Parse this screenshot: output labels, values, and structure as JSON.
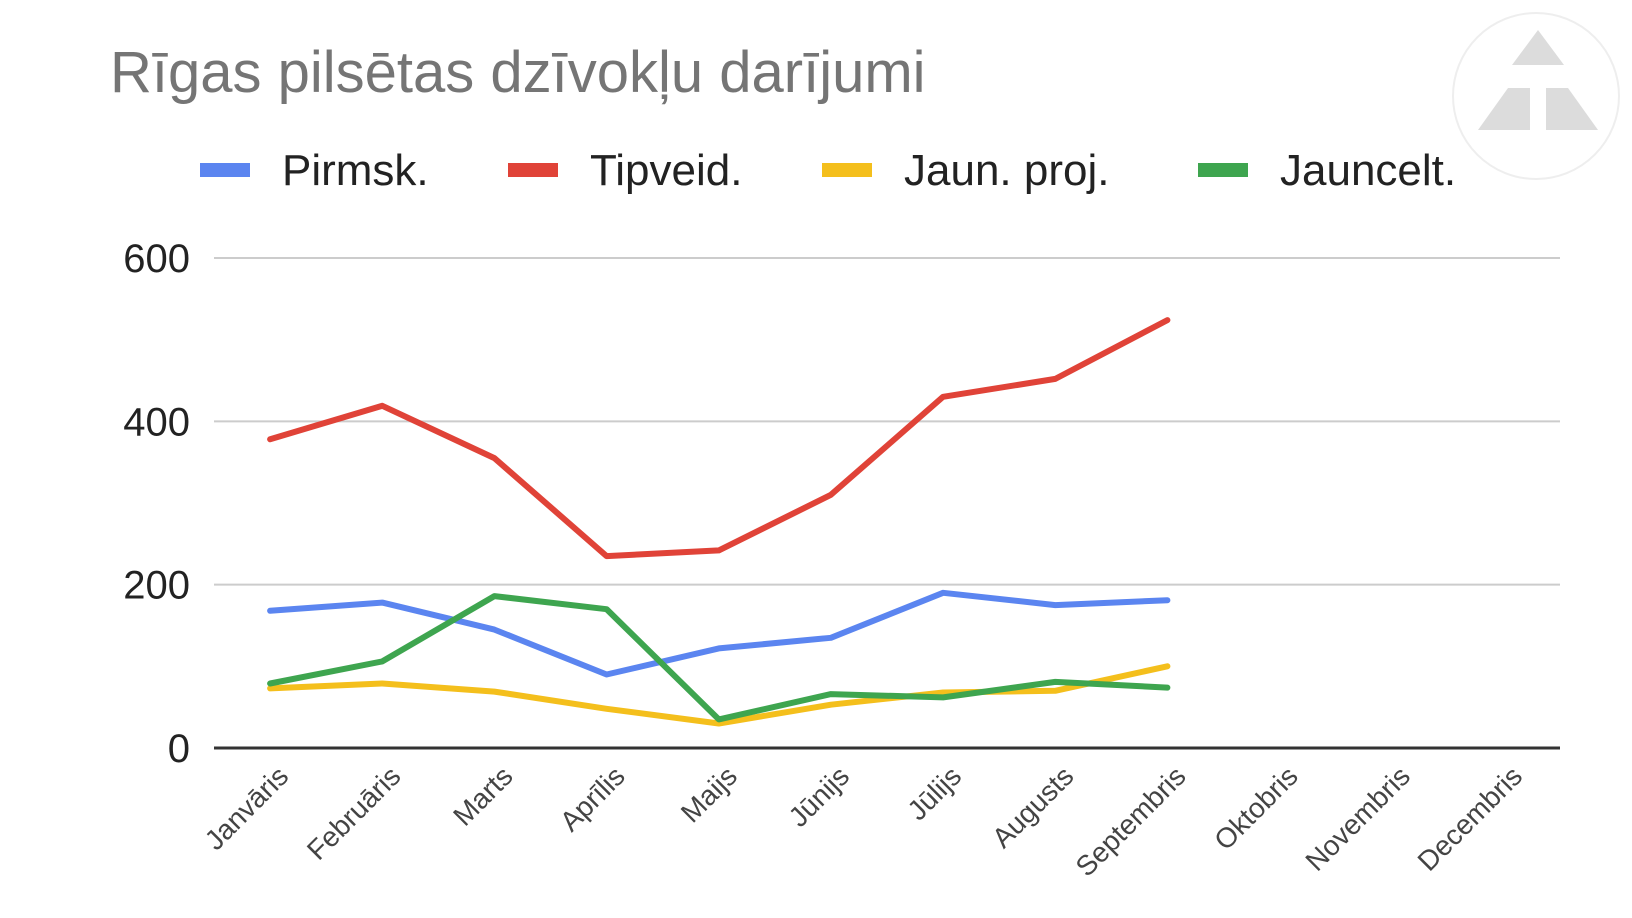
{
  "chart_data": {
    "type": "line",
    "title": "Rīgas pilsētas dzīvokļu darījumi",
    "xlabel": "",
    "ylabel": "",
    "ylim": [
      0,
      600
    ],
    "yticks": [
      "0",
      "200",
      "400",
      "600"
    ],
    "grid": true,
    "legend_position": "top",
    "categories": [
      "Janvāris",
      "Februāris",
      "Marts",
      "Aprīlis",
      "Maijs",
      "Jūnijs",
      "Jūlijs",
      "Augusts",
      "Septembris",
      "Oktobris",
      "Novembris",
      "Decembris"
    ],
    "series": [
      {
        "name": "Pirmsk.",
        "color": "#5b85f0",
        "values": [
          168,
          178,
          145,
          90,
          122,
          135,
          190,
          175,
          181,
          null,
          null,
          null
        ]
      },
      {
        "name": "Tipveid.",
        "color": "#e04338",
        "values": [
          378,
          419,
          355,
          235,
          242,
          310,
          430,
          452,
          524,
          null,
          null,
          null
        ]
      },
      {
        "name": "Jaun. proj.",
        "color": "#f4bf1c",
        "values": [
          73,
          79,
          69,
          48,
          30,
          53,
          68,
          70,
          100,
          null,
          null,
          null
        ]
      },
      {
        "name": "Jauncelt.",
        "color": "#3ea54f",
        "values": [
          79,
          106,
          186,
          170,
          35,
          66,
          62,
          81,
          74,
          null,
          null,
          null
        ]
      }
    ]
  },
  "watermark_icon": "logo-triangle-icon"
}
